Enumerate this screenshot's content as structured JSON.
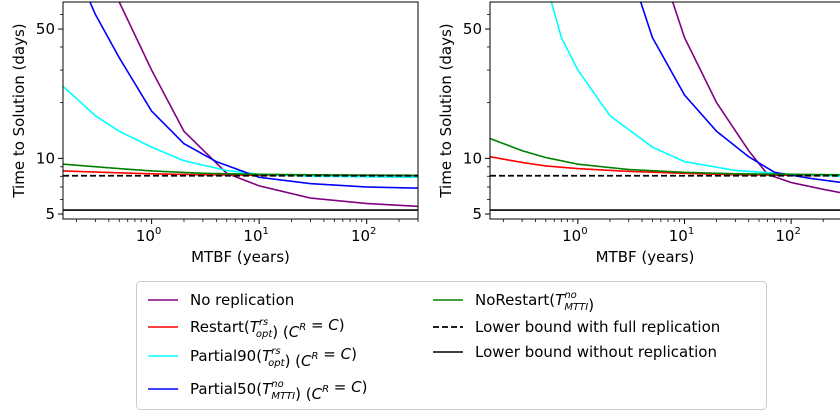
{
  "chart_data": [
    {
      "type": "line",
      "panel": "left",
      "xlabel": "MTBF (years)",
      "ylabel": "Time to Solution (days)",
      "xscale": "log",
      "yscale": "log",
      "xlim": [
        0.15,
        300
      ],
      "ylim": [
        4.7,
        70
      ],
      "xticks": [
        1,
        10,
        100
      ],
      "xtick_labels": [
        "10",
        "10",
        "10"
      ],
      "xtick_exponents": [
        "0",
        "1",
        "2"
      ],
      "yticks": [
        5,
        10,
        50
      ],
      "ytick_labels": [
        "5",
        "10",
        "50"
      ],
      "series": [
        {
          "key": "no_replication",
          "color": "#800080",
          "x": [
            0.15,
            0.5,
            1,
            2,
            5,
            10,
            30,
            100,
            300
          ],
          "y": [
            130,
            70,
            30,
            14,
            8.3,
            7.1,
            6.1,
            5.7,
            5.5
          ]
        },
        {
          "key": "restart",
          "color": "#ff0000",
          "x": [
            0.15,
            0.5,
            1,
            3,
            10,
            30,
            100,
            300
          ],
          "y": [
            8.55,
            8.35,
            8.25,
            8.15,
            8.1,
            8.08,
            8.06,
            8.05
          ]
        },
        {
          "key": "partial90",
          "color": "#00ffff",
          "x": [
            0.15,
            0.3,
            0.5,
            1,
            2,
            5,
            10,
            30,
            100,
            300
          ],
          "y": [
            24.5,
            17,
            14,
            11.5,
            9.7,
            8.6,
            8.2,
            8.0,
            7.95,
            7.9
          ]
        },
        {
          "key": "partial50",
          "color": "#0000ff",
          "x": [
            0.15,
            0.3,
            0.5,
            1,
            2,
            4,
            10,
            30,
            100,
            300
          ],
          "y": [
            150,
            60,
            35,
            18,
            12,
            9.6,
            7.9,
            7.3,
            7.0,
            6.9
          ]
        },
        {
          "key": "norestart",
          "color": "#008000",
          "x": [
            0.15,
            0.5,
            1,
            3,
            10,
            30,
            100,
            300
          ],
          "y": [
            9.3,
            8.8,
            8.55,
            8.3,
            8.2,
            8.15,
            8.12,
            8.1
          ]
        },
        {
          "key": "lower_full",
          "color": "#000000",
          "dash": true,
          "x": [
            0.15,
            300
          ],
          "y": [
            8.05,
            8.05
          ]
        },
        {
          "key": "lower_without",
          "color": "#000000",
          "x": [
            0.15,
            300
          ],
          "y": [
            5.25,
            5.25
          ]
        }
      ]
    },
    {
      "type": "line",
      "panel": "right",
      "xlabel": "MTBF (years)",
      "ylabel": "Time to Solution (days)",
      "xscale": "log",
      "yscale": "log",
      "xlim": [
        0.15,
        300
      ],
      "ylim": [
        4.7,
        70
      ],
      "xticks": [
        1,
        10,
        100
      ],
      "xtick_labels": [
        "10",
        "10",
        "10"
      ],
      "xtick_exponents": [
        "0",
        "1",
        "2"
      ],
      "yticks": [
        5,
        10,
        50
      ],
      "ytick_labels": [
        "5",
        "10",
        "50"
      ],
      "series": [
        {
          "key": "no_replication",
          "color": "#800080",
          "x": [
            5,
            10,
            20,
            40,
            60,
            100,
            200,
            300
          ],
          "y": [
            150,
            45,
            20,
            11,
            8.2,
            7.4,
            6.8,
            6.5
          ]
        },
        {
          "key": "restart",
          "color": "#ff0000",
          "x": [
            0.15,
            0.3,
            0.5,
            1,
            3,
            10,
            30,
            100,
            300
          ],
          "y": [
            10.2,
            9.5,
            9.1,
            8.8,
            8.5,
            8.3,
            8.15,
            8.1,
            8.05
          ]
        },
        {
          "key": "partial90",
          "color": "#00ffff",
          "x": [
            0.5,
            0.7,
            1,
            2,
            5,
            10,
            30,
            100,
            300
          ],
          "y": [
            90,
            45,
            30,
            17,
            11.5,
            9.6,
            8.6,
            8.2,
            8.0
          ]
        },
        {
          "key": "partial50",
          "color": "#0000ff",
          "x": [
            3,
            5,
            10,
            20,
            40,
            70,
            150,
            300
          ],
          "y": [
            110,
            45,
            22,
            14,
            10.2,
            8.4,
            7.8,
            7.4
          ]
        },
        {
          "key": "norestart",
          "color": "#008000",
          "x": [
            0.15,
            0.3,
            0.5,
            1,
            3,
            10,
            30,
            100,
            300
          ],
          "y": [
            12.8,
            11,
            10.1,
            9.3,
            8.7,
            8.4,
            8.25,
            8.2,
            8.15
          ]
        },
        {
          "key": "lower_full",
          "color": "#000000",
          "dash": true,
          "x": [
            0.15,
            300
          ],
          "y": [
            8.05,
            8.05
          ]
        },
        {
          "key": "lower_without",
          "color": "#000000",
          "x": [
            0.15,
            300
          ],
          "y": [
            5.25,
            5.25
          ]
        }
      ]
    }
  ],
  "legend": {
    "placement": "bottom-center",
    "entries": [
      {
        "key": "no_replication",
        "color": "#800080",
        "dash": false,
        "parts": [
          {
            "t": "No replication"
          }
        ]
      },
      {
        "key": "restart",
        "color": "#ff0000",
        "dash": false,
        "parts": [
          {
            "t": "Restart("
          },
          {
            "t": "T",
            "i": true
          },
          {
            "sup": "rs",
            "sub": "opt"
          },
          {
            "t": ") ("
          },
          {
            "t": "C",
            "i": true
          },
          {
            "sup1": "R"
          },
          {
            "t": " = "
          },
          {
            "t": "C",
            "i": true
          },
          {
            "t": ")"
          }
        ]
      },
      {
        "key": "partial90",
        "color": "#00ffff",
        "dash": false,
        "parts": [
          {
            "t": "Partial90("
          },
          {
            "t": "T",
            "i": true
          },
          {
            "sup": "rs",
            "sub": "opt"
          },
          {
            "t": ") ("
          },
          {
            "t": "C",
            "i": true
          },
          {
            "sup1": "R"
          },
          {
            "t": " = "
          },
          {
            "t": "C",
            "i": true
          },
          {
            "t": ")"
          }
        ]
      },
      {
        "key": "partial50",
        "color": "#0000ff",
        "dash": false,
        "parts": [
          {
            "t": "Partial50("
          },
          {
            "t": "T",
            "i": true
          },
          {
            "sup": "no",
            "sub": "MTTI"
          },
          {
            "t": ") ("
          },
          {
            "t": "C",
            "i": true
          },
          {
            "sup1": "R"
          },
          {
            "t": " = "
          },
          {
            "t": "C",
            "i": true
          },
          {
            "t": ")"
          }
        ]
      },
      {
        "key": "norestart",
        "color": "#008000",
        "dash": false,
        "parts": [
          {
            "t": "NoRestart("
          },
          {
            "t": "T",
            "i": true
          },
          {
            "sup": "no",
            "sub": "MTTI"
          },
          {
            "t": ")"
          }
        ]
      },
      {
        "key": "lower_full",
        "color": "#000000",
        "dash": true,
        "parts": [
          {
            "t": "Lower bound with full replication"
          }
        ]
      },
      {
        "key": "lower_without",
        "color": "#000000",
        "dash": false,
        "parts": [
          {
            "t": "Lower bound without replication"
          }
        ]
      }
    ]
  }
}
